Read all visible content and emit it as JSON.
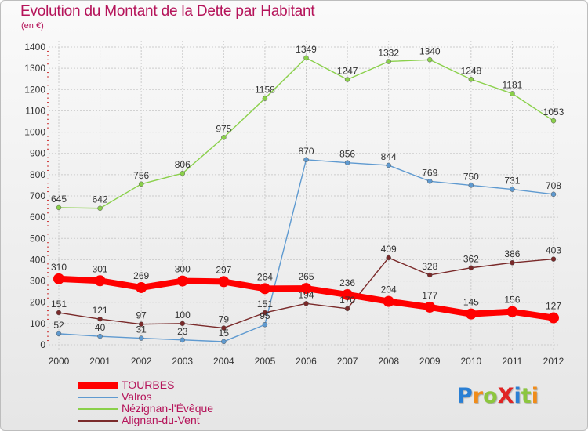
{
  "title": "Evolution du Montant de la Dette par Habitant",
  "unit_label": "(en €)",
  "logo": {
    "text": "ProXiti",
    "letters": [
      {
        "ch": "P",
        "color": "#2a7fd4"
      },
      {
        "ch": "r",
        "color": "#f08c1a"
      },
      {
        "ch": "o",
        "color": "#8cc63e"
      },
      {
        "ch": "X",
        "color": "#e02424"
      },
      {
        "ch": "i",
        "color": "#2a7fd4"
      },
      {
        "ch": "t",
        "color": "#8cc63e"
      },
      {
        "ch": "i",
        "color": "#f08c1a"
      }
    ]
  },
  "colors": {
    "title": "#b5145a",
    "grid": "#cccccc",
    "axis_text": "#333333",
    "label_text": "#333333"
  },
  "chart_data": {
    "type": "line",
    "title": "Evolution du Montant de la Dette par Habitant",
    "ylabel": "(en €)",
    "xlabel": "",
    "x": [
      "2000",
      "2001",
      "2002",
      "2003",
      "2004",
      "2005",
      "2006",
      "2007",
      "2008",
      "2009",
      "2010",
      "2011",
      "2012"
    ],
    "ylim": [
      0,
      1400
    ],
    "yticks": [
      0,
      100,
      200,
      300,
      400,
      500,
      600,
      700,
      800,
      900,
      1000,
      1100,
      1200,
      1300,
      1400
    ],
    "grid": true,
    "legend_position": "bottom-left",
    "series": [
      {
        "name": "TOURBES",
        "color": "#ff0000",
        "width": 8,
        "values": [
          310,
          301,
          269,
          300,
          297,
          264,
          265,
          236,
          204,
          177,
          145,
          156,
          127
        ],
        "labels": [
          "310",
          "301",
          "269",
          "300",
          "297",
          "264",
          "265",
          "236",
          "204",
          "177",
          "145",
          "156",
          "127"
        ]
      },
      {
        "name": "Valros",
        "color": "#5f9ad0",
        "width": 1.4,
        "values": [
          52,
          40,
          31,
          23,
          15,
          95,
          870,
          856,
          844,
          769,
          750,
          731,
          708
        ],
        "labels": [
          "52",
          "40",
          "31",
          "23",
          "15",
          "95",
          "870",
          "856",
          "844",
          "769",
          "750",
          "731",
          "708"
        ]
      },
      {
        "name": "Nézignan-l'Évêque",
        "color": "#8ad04a",
        "width": 1.4,
        "values": [
          645,
          642,
          756,
          806,
          975,
          1158,
          1349,
          1247,
          1332,
          1340,
          1248,
          1181,
          1053
        ],
        "labels": [
          "645",
          "642",
          "756",
          "806",
          "975",
          "1158",
          "1349",
          "1247",
          "1332",
          "1340",
          "1248",
          "1181",
          "1053"
        ]
      },
      {
        "name": "Alignan-du-Vent",
        "color": "#7a2a2a",
        "width": 1.4,
        "values": [
          151,
          121,
          97,
          100,
          79,
          151,
          194,
          170,
          409,
          328,
          362,
          386,
          403
        ],
        "labels": [
          "151",
          "121",
          "97",
          "100",
          "79",
          "151",
          "194",
          "170",
          "409",
          "328",
          "362",
          "386",
          "403"
        ]
      }
    ]
  }
}
